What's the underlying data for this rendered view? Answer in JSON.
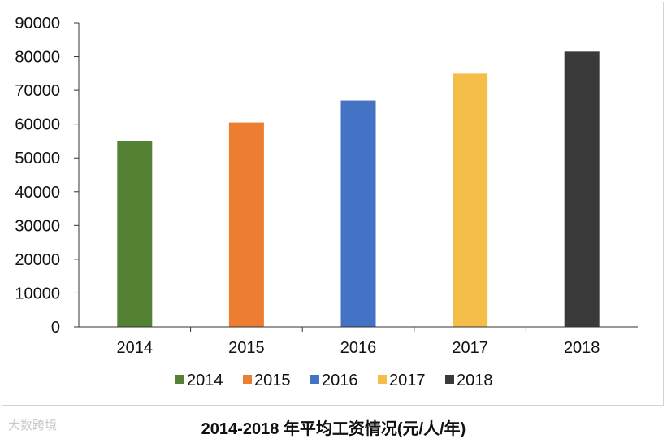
{
  "chart_data": {
    "type": "bar",
    "categories": [
      "2014",
      "2015",
      "2016",
      "2017",
      "2018"
    ],
    "values": [
      55000,
      60500,
      67000,
      75000,
      81500
    ],
    "colors": [
      "#548235",
      "#ED7D31",
      "#4472C4",
      "#F4BE49",
      "#3A3A3A"
    ],
    "yticks": [
      "0",
      "10000",
      "20000",
      "30000",
      "40000",
      "50000",
      "60000",
      "70000",
      "80000",
      "90000"
    ],
    "ylim": [
      0,
      90000
    ],
    "grid": false,
    "legend_position": "bottom",
    "legend": [
      "2014",
      "2015",
      "2016",
      "2017",
      "2018"
    ]
  },
  "caption": "2014-2018 年平均工资情况(元/人/年)",
  "watermark": "大数跨境"
}
